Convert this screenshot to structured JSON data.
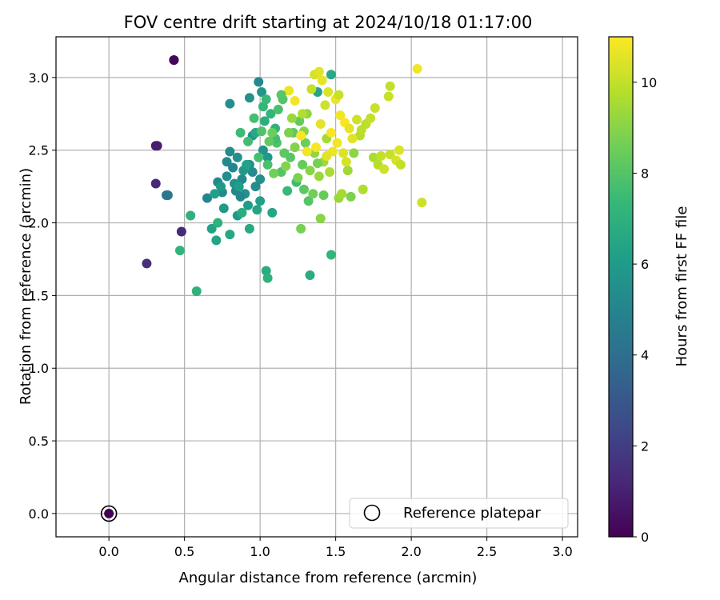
{
  "chart_data": {
    "type": "scatter",
    "title": "FOV centre drift starting at 2024/10/18 01:17:00",
    "xlabel": "Angular distance from reference (arcmin)",
    "ylabel": "Rotation from reference (arcmin)",
    "xlim": [
      -0.35,
      3.1
    ],
    "ylim": [
      -0.16,
      3.28
    ],
    "xticks": [
      0.0,
      0.5,
      1.0,
      1.5,
      2.0,
      2.5,
      3.0
    ],
    "yticks": [
      0.0,
      0.5,
      1.0,
      1.5,
      2.0,
      2.5,
      3.0
    ],
    "grid": true,
    "legend": {
      "position": "lower-right",
      "entries": [
        "Reference platepar"
      ]
    },
    "reference_point": {
      "x": 0.0,
      "y": 0.0,
      "label": "Reference platepar"
    },
    "colorbar": {
      "label": "Hours from first FF file",
      "range": [
        0,
        11
      ],
      "ticks": [
        0,
        2,
        4,
        6,
        8,
        10
      ],
      "colormap": "viridis"
    },
    "colormap_stops": [
      "#440154",
      "#482878",
      "#3e4a89",
      "#31688e",
      "#26828e",
      "#1f9e89",
      "#35b779",
      "#6ece58",
      "#b5de2b",
      "#fde725"
    ],
    "points": [
      {
        "x": 0.0,
        "y": 0.0,
        "h": 0.0
      },
      {
        "x": 0.43,
        "y": 3.12,
        "h": 0.1
      },
      {
        "x": 0.43,
        "y": 3.12,
        "h": 0.2
      },
      {
        "x": 0.31,
        "y": 2.53,
        "h": 0.8
      },
      {
        "x": 0.32,
        "y": 2.53,
        "h": 0.9
      },
      {
        "x": 0.31,
        "y": 2.27,
        "h": 1.2
      },
      {
        "x": 0.48,
        "y": 1.94,
        "h": 1.3
      },
      {
        "x": 0.25,
        "y": 1.72,
        "h": 1.5
      },
      {
        "x": 0.39,
        "y": 2.19,
        "h": 4.3
      },
      {
        "x": 0.38,
        "y": 2.19,
        "h": 4.4
      },
      {
        "x": 0.65,
        "y": 2.17,
        "h": 5.0
      },
      {
        "x": 0.72,
        "y": 2.28,
        "h": 5.1
      },
      {
        "x": 0.75,
        "y": 2.21,
        "h": 5.2
      },
      {
        "x": 0.8,
        "y": 2.49,
        "h": 5.3
      },
      {
        "x": 0.82,
        "y": 2.38,
        "h": 5.0
      },
      {
        "x": 0.78,
        "y": 2.32,
        "h": 5.4
      },
      {
        "x": 0.85,
        "y": 2.45,
        "h": 5.5
      },
      {
        "x": 0.88,
        "y": 2.3,
        "h": 5.2
      },
      {
        "x": 0.9,
        "y": 2.2,
        "h": 5.6
      },
      {
        "x": 0.93,
        "y": 2.4,
        "h": 5.3
      },
      {
        "x": 0.95,
        "y": 2.6,
        "h": 5.7
      },
      {
        "x": 0.97,
        "y": 2.25,
        "h": 5.4
      },
      {
        "x": 0.8,
        "y": 2.82,
        "h": 5.5
      },
      {
        "x": 0.93,
        "y": 2.86,
        "h": 5.6
      },
      {
        "x": 0.99,
        "y": 2.97,
        "h": 5.2
      },
      {
        "x": 1.01,
        "y": 2.9,
        "h": 5.8
      },
      {
        "x": 0.76,
        "y": 2.1,
        "h": 5.9
      },
      {
        "x": 0.85,
        "y": 2.05,
        "h": 6.0
      },
      {
        "x": 0.92,
        "y": 2.12,
        "h": 6.1
      },
      {
        "x": 0.7,
        "y": 2.2,
        "h": 6.2
      },
      {
        "x": 0.84,
        "y": 2.22,
        "h": 5.0
      },
      {
        "x": 0.87,
        "y": 2.18,
        "h": 5.1
      },
      {
        "x": 0.95,
        "y": 2.35,
        "h": 5.3
      },
      {
        "x": 1.0,
        "y": 2.3,
        "h": 5.5
      },
      {
        "x": 1.02,
        "y": 2.5,
        "h": 5.7
      },
      {
        "x": 1.05,
        "y": 2.45,
        "h": 5.9
      },
      {
        "x": 0.78,
        "y": 2.42,
        "h": 5.2
      },
      {
        "x": 0.83,
        "y": 2.27,
        "h": 5.6
      },
      {
        "x": 0.89,
        "y": 2.36,
        "h": 5.8
      },
      {
        "x": 0.74,
        "y": 2.25,
        "h": 6.0
      },
      {
        "x": 0.68,
        "y": 1.96,
        "h": 6.3
      },
      {
        "x": 0.71,
        "y": 1.88,
        "h": 6.4
      },
      {
        "x": 0.8,
        "y": 1.92,
        "h": 6.5
      },
      {
        "x": 0.93,
        "y": 1.96,
        "h": 6.6
      },
      {
        "x": 1.04,
        "y": 1.67,
        "h": 6.7
      },
      {
        "x": 1.05,
        "y": 1.62,
        "h": 7.0
      },
      {
        "x": 0.88,
        "y": 2.07,
        "h": 6.8
      },
      {
        "x": 0.98,
        "y": 2.09,
        "h": 6.4
      },
      {
        "x": 1.08,
        "y": 2.07,
        "h": 6.5
      },
      {
        "x": 1.0,
        "y": 2.15,
        "h": 6.2
      },
      {
        "x": 0.86,
        "y": 2.25,
        "h": 6.1
      },
      {
        "x": 0.91,
        "y": 2.4,
        "h": 6.3
      },
      {
        "x": 0.97,
        "y": 2.62,
        "h": 6.6
      },
      {
        "x": 1.03,
        "y": 2.7,
        "h": 6.9
      },
      {
        "x": 1.1,
        "y": 2.65,
        "h": 7.1
      },
      {
        "x": 1.07,
        "y": 2.75,
        "h": 7.2
      },
      {
        "x": 1.02,
        "y": 2.8,
        "h": 7.3
      },
      {
        "x": 1.04,
        "y": 2.85,
        "h": 7.4
      },
      {
        "x": 0.54,
        "y": 2.05,
        "h": 7.0
      },
      {
        "x": 0.47,
        "y": 1.81,
        "h": 7.2
      },
      {
        "x": 0.58,
        "y": 1.53,
        "h": 7.1
      },
      {
        "x": 0.72,
        "y": 2.0,
        "h": 7.0
      },
      {
        "x": 0.87,
        "y": 2.62,
        "h": 7.5
      },
      {
        "x": 0.92,
        "y": 2.56,
        "h": 7.6
      },
      {
        "x": 0.99,
        "y": 2.45,
        "h": 7.7
      },
      {
        "x": 1.05,
        "y": 2.4,
        "h": 7.8
      },
      {
        "x": 1.11,
        "y": 2.55,
        "h": 7.9
      },
      {
        "x": 1.14,
        "y": 2.35,
        "h": 8.0
      },
      {
        "x": 1.18,
        "y": 2.22,
        "h": 7.4
      },
      {
        "x": 1.2,
        "y": 2.45,
        "h": 8.1
      },
      {
        "x": 1.22,
        "y": 2.62,
        "h": 8.2
      },
      {
        "x": 1.24,
        "y": 2.28,
        "h": 7.5
      },
      {
        "x": 1.26,
        "y": 2.7,
        "h": 8.3
      },
      {
        "x": 1.28,
        "y": 2.4,
        "h": 8.4
      },
      {
        "x": 1.3,
        "y": 2.55,
        "h": 8.5
      },
      {
        "x": 1.32,
        "y": 2.15,
        "h": 8.0
      },
      {
        "x": 1.35,
        "y": 2.2,
        "h": 8.6
      },
      {
        "x": 1.27,
        "y": 1.96,
        "h": 8.7
      },
      {
        "x": 1.33,
        "y": 1.64,
        "h": 6.8
      },
      {
        "x": 1.47,
        "y": 1.78,
        "h": 7.2
      },
      {
        "x": 1.47,
        "y": 3.02,
        "h": 6.6
      },
      {
        "x": 1.38,
        "y": 2.9,
        "h": 6.4
      },
      {
        "x": 1.15,
        "y": 2.85,
        "h": 8.0
      },
      {
        "x": 1.1,
        "y": 2.58,
        "h": 7.6
      },
      {
        "x": 1.16,
        "y": 2.48,
        "h": 8.2
      },
      {
        "x": 1.19,
        "y": 2.62,
        "h": 8.8
      },
      {
        "x": 1.23,
        "y": 2.52,
        "h": 8.9
      },
      {
        "x": 1.29,
        "y": 2.63,
        "h": 9.0
      },
      {
        "x": 1.31,
        "y": 2.75,
        "h": 9.1
      },
      {
        "x": 1.36,
        "y": 2.48,
        "h": 9.2
      },
      {
        "x": 1.39,
        "y": 2.32,
        "h": 9.3
      },
      {
        "x": 1.42,
        "y": 2.42,
        "h": 9.4
      },
      {
        "x": 1.44,
        "y": 2.58,
        "h": 9.5
      },
      {
        "x": 1.46,
        "y": 2.35,
        "h": 9.6
      },
      {
        "x": 1.4,
        "y": 2.03,
        "h": 9.0
      },
      {
        "x": 1.42,
        "y": 2.19,
        "h": 8.4
      },
      {
        "x": 1.52,
        "y": 2.17,
        "h": 9.3
      },
      {
        "x": 1.54,
        "y": 2.2,
        "h": 9.5
      },
      {
        "x": 1.6,
        "y": 2.18,
        "h": 8.8
      },
      {
        "x": 1.68,
        "y": 2.23,
        "h": 9.7
      },
      {
        "x": 1.58,
        "y": 2.36,
        "h": 9.4
      },
      {
        "x": 1.62,
        "y": 2.48,
        "h": 9.1
      },
      {
        "x": 1.66,
        "y": 2.6,
        "h": 9.8
      },
      {
        "x": 1.7,
        "y": 2.68,
        "h": 9.9
      },
      {
        "x": 1.73,
        "y": 2.72,
        "h": 10.0
      },
      {
        "x": 1.76,
        "y": 2.79,
        "h": 10.1
      },
      {
        "x": 1.75,
        "y": 2.45,
        "h": 9.6
      },
      {
        "x": 1.78,
        "y": 2.4,
        "h": 9.8
      },
      {
        "x": 1.8,
        "y": 2.46,
        "h": 10.0
      },
      {
        "x": 1.82,
        "y": 2.37,
        "h": 10.2
      },
      {
        "x": 1.86,
        "y": 2.47,
        "h": 10.1
      },
      {
        "x": 1.9,
        "y": 2.43,
        "h": 10.3
      },
      {
        "x": 1.92,
        "y": 2.5,
        "h": 10.4
      },
      {
        "x": 1.93,
        "y": 2.4,
        "h": 10.0
      },
      {
        "x": 2.07,
        "y": 2.14,
        "h": 10.2
      },
      {
        "x": 1.85,
        "y": 2.87,
        "h": 10.1
      },
      {
        "x": 1.86,
        "y": 2.94,
        "h": 10.0
      },
      {
        "x": 2.04,
        "y": 3.06,
        "h": 10.8
      },
      {
        "x": 1.36,
        "y": 3.02,
        "h": 10.3
      },
      {
        "x": 1.39,
        "y": 3.04,
        "h": 10.5
      },
      {
        "x": 1.41,
        "y": 2.98,
        "h": 10.6
      },
      {
        "x": 1.45,
        "y": 2.9,
        "h": 10.4
      },
      {
        "x": 1.5,
        "y": 2.85,
        "h": 10.7
      },
      {
        "x": 1.53,
        "y": 2.74,
        "h": 10.8
      },
      {
        "x": 1.56,
        "y": 2.69,
        "h": 10.9
      },
      {
        "x": 1.59,
        "y": 2.65,
        "h": 10.6
      },
      {
        "x": 1.61,
        "y": 2.58,
        "h": 10.5
      },
      {
        "x": 1.47,
        "y": 2.62,
        "h": 10.9
      },
      {
        "x": 1.51,
        "y": 2.55,
        "h": 10.8
      },
      {
        "x": 1.48,
        "y": 2.49,
        "h": 10.7
      },
      {
        "x": 1.44,
        "y": 2.46,
        "h": 10.5
      },
      {
        "x": 1.4,
        "y": 2.68,
        "h": 10.6
      },
      {
        "x": 1.37,
        "y": 2.52,
        "h": 10.9
      },
      {
        "x": 1.31,
        "y": 2.49,
        "h": 10.8
      },
      {
        "x": 1.27,
        "y": 2.6,
        "h": 10.9
      },
      {
        "x": 1.23,
        "y": 2.84,
        "h": 10.8
      },
      {
        "x": 1.19,
        "y": 2.91,
        "h": 10.7
      },
      {
        "x": 1.55,
        "y": 2.48,
        "h": 10.4
      },
      {
        "x": 1.57,
        "y": 2.42,
        "h": 10.3
      },
      {
        "x": 1.64,
        "y": 2.71,
        "h": 10.2
      },
      {
        "x": 1.67,
        "y": 2.64,
        "h": 9.9
      },
      {
        "x": 1.52,
        "y": 2.88,
        "h": 10.1
      },
      {
        "x": 1.43,
        "y": 2.81,
        "h": 10.2
      },
      {
        "x": 1.34,
        "y": 2.92,
        "h": 10.0
      },
      {
        "x": 1.28,
        "y": 2.75,
        "h": 9.7
      },
      {
        "x": 1.21,
        "y": 2.72,
        "h": 9.3
      },
      {
        "x": 1.17,
        "y": 2.39,
        "h": 8.9
      },
      {
        "x": 1.09,
        "y": 2.34,
        "h": 8.6
      },
      {
        "x": 1.06,
        "y": 2.56,
        "h": 8.3
      },
      {
        "x": 1.01,
        "y": 2.63,
        "h": 7.9
      },
      {
        "x": 0.96,
        "y": 2.72,
        "h": 7.7
      },
      {
        "x": 1.12,
        "y": 2.78,
        "h": 7.8
      },
      {
        "x": 1.14,
        "y": 2.88,
        "h": 8.1
      },
      {
        "x": 1.08,
        "y": 2.62,
        "h": 8.5
      },
      {
        "x": 1.25,
        "y": 2.31,
        "h": 8.8
      },
      {
        "x": 1.29,
        "y": 2.23,
        "h": 8.2
      },
      {
        "x": 1.33,
        "y": 2.36,
        "h": 9.0
      },
      {
        "x": 1.38,
        "y": 2.41,
        "h": 8.7
      }
    ]
  }
}
